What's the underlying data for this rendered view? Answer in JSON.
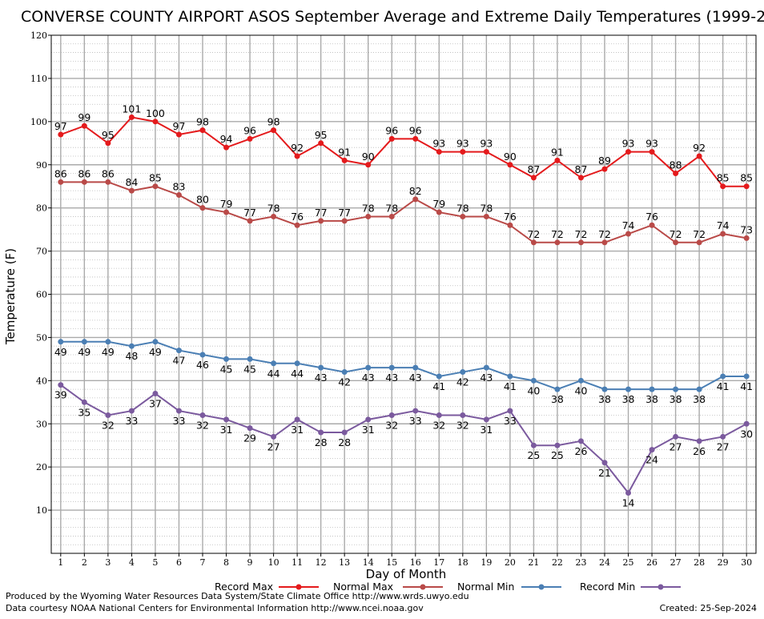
{
  "chart_data": {
    "type": "line",
    "title": "CONVERSE COUNTY AIRPORT ASOS September Average and Extreme Daily Temperatures (1999-2024)",
    "xlabel": "Day of Month",
    "ylabel": "Temperature (F)",
    "x": [
      1,
      2,
      3,
      4,
      5,
      6,
      7,
      8,
      9,
      10,
      11,
      12,
      13,
      14,
      15,
      16,
      17,
      18,
      19,
      20,
      21,
      22,
      23,
      24,
      25,
      26,
      27,
      28,
      29,
      30
    ],
    "xlim": [
      0.6,
      30.4
    ],
    "ylim": [
      0,
      120
    ],
    "yticks": [
      10,
      20,
      30,
      40,
      50,
      60,
      70,
      80,
      90,
      100,
      110,
      120
    ],
    "grid": true,
    "legend_position": "bottom",
    "series": [
      {
        "name": "Record Max",
        "color": "#e41a1c",
        "label_pos": "above",
        "values": [
          97,
          99,
          95,
          101,
          100,
          97,
          98,
          94,
          96,
          98,
          92,
          95,
          91,
          90,
          96,
          96,
          93,
          93,
          93,
          90,
          87,
          91,
          87,
          89,
          93,
          93,
          88,
          92,
          85,
          85
        ]
      },
      {
        "name": "Normal Max",
        "color": "#b94a48",
        "label_pos": "above",
        "values": [
          86,
          86,
          86,
          84,
          85,
          83,
          80,
          79,
          77,
          78,
          76,
          77,
          77,
          78,
          78,
          82,
          79,
          78,
          78,
          76,
          72,
          72,
          72,
          72,
          74,
          76,
          72,
          72,
          74,
          73
        ]
      },
      {
        "name": "Normal Min",
        "color": "#4b7fb4",
        "label_pos": "below",
        "values": [
          49,
          49,
          49,
          48,
          49,
          47,
          46,
          45,
          45,
          44,
          44,
          43,
          42,
          43,
          43,
          43,
          41,
          42,
          43,
          41,
          40,
          38,
          40,
          38,
          38,
          38,
          38,
          38,
          41,
          41
        ]
      },
      {
        "name": "Record Min",
        "color": "#7b5a9e",
        "label_pos": "below",
        "values": [
          39,
          35,
          32,
          33,
          37,
          33,
          32,
          31,
          29,
          27,
          31,
          28,
          28,
          31,
          32,
          33,
          32,
          32,
          31,
          33,
          25,
          25,
          26,
          21,
          14,
          24,
          27,
          26,
          27,
          30
        ]
      }
    ]
  },
  "footer": {
    "produced_by": "Produced by the Wyoming Water Resources Data System/State Climate Office http://www.wrds.uwyo.edu",
    "courtesy": "Data courtesy NOAA National Centers for Environmental Information http://www.ncei.noaa.gov",
    "created": "Created:  25-Sep-2024"
  }
}
